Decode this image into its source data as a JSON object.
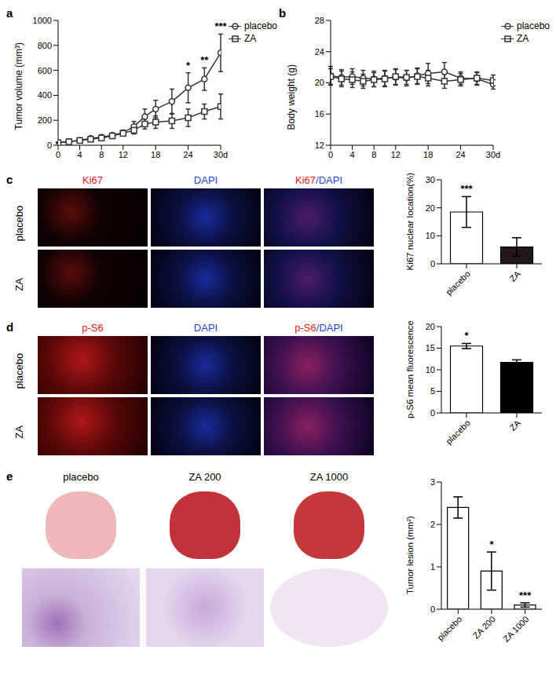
{
  "chart_data": [
    {
      "type": "line",
      "title": "a",
      "x": [
        0,
        2,
        4,
        6,
        8,
        10,
        12,
        14,
        16,
        18,
        21,
        24,
        27,
        30
      ],
      "xlim": [
        0,
        30
      ],
      "xticks": [
        0,
        4,
        8,
        12,
        18,
        24,
        {
          "value": 30,
          "label": "30d"
        }
      ],
      "ylim": [
        0,
        1000
      ],
      "yticks": [
        0,
        200,
        400,
        600,
        800,
        1000
      ],
      "y_label": "Tumor volume (mm³)",
      "legend": "right",
      "series": [
        {
          "name": "placebo",
          "color": "#333333",
          "marker": "circle",
          "values": [
            20,
            30,
            40,
            55,
            65,
            80,
            100,
            150,
            230,
            290,
            350,
            460,
            530,
            740
          ],
          "errors": [
            5,
            5,
            8,
            10,
            10,
            12,
            20,
            40,
            60,
            70,
            100,
            120,
            90,
            150
          ]
        },
        {
          "name": "ZA",
          "color": "#333333",
          "marker": "square",
          "values": [
            20,
            28,
            38,
            48,
            58,
            75,
            95,
            120,
            170,
            185,
            195,
            220,
            270,
            310
          ],
          "errors": [
            5,
            5,
            6,
            8,
            10,
            12,
            15,
            30,
            40,
            50,
            60,
            70,
            60,
            100
          ]
        }
      ],
      "annotations": [
        {
          "x": 24,
          "series": "placebo",
          "text": "*"
        },
        {
          "x": 27,
          "series": "placebo",
          "text": "**"
        },
        {
          "x": 30,
          "series": "placebo",
          "text": "***"
        }
      ]
    },
    {
      "type": "line",
      "title": "b",
      "x": [
        0,
        2,
        4,
        6,
        8,
        10,
        12,
        14,
        16,
        18,
        21,
        24,
        27,
        30
      ],
      "xlim": [
        0,
        30
      ],
      "xticks": [
        0,
        4,
        8,
        12,
        18,
        24,
        {
          "value": 30,
          "label": "30d"
        }
      ],
      "ylim": [
        12,
        28
      ],
      "yticks": [
        12,
        16,
        20,
        24,
        28
      ],
      "y_label": "Body weight (g)",
      "legend": "right",
      "series": [
        {
          "name": "placebo",
          "color": "#333333",
          "marker": "circle",
          "values": [
            20.9,
            20.7,
            20.8,
            20.6,
            20.5,
            20.6,
            20.7,
            20.6,
            20.9,
            21.2,
            21.4,
            20.6,
            20.5,
            19.8
          ],
          "errors": [
            1.2,
            1,
            1,
            1,
            1,
            1,
            1,
            1,
            1,
            1.3,
            1.2,
            0.8,
            0.8,
            0.6
          ]
        },
        {
          "name": "ZA",
          "color": "#333333",
          "marker": "square",
          "values": [
            20.8,
            20.5,
            20.4,
            20.2,
            20.4,
            20.5,
            20.8,
            20.7,
            20.8,
            20.6,
            20.2,
            20.4,
            20.6,
            20.3
          ],
          "errors": [
            1,
            1,
            1,
            0.9,
            0.9,
            1,
            1,
            0.9,
            1,
            1,
            0.9,
            0.8,
            0.8,
            0.7
          ]
        }
      ]
    },
    {
      "type": "bar",
      "categories": [
        "placebo",
        "ZA"
      ],
      "values": [
        18.5,
        6
      ],
      "errors": [
        5.5,
        3.3
      ],
      "colors": [
        "#ffffff",
        "#231816"
      ],
      "ylim": [
        0,
        30
      ],
      "yticks": [
        0,
        10,
        20,
        30
      ],
      "y_label": "Ki67 nuclear location(%)",
      "annotations": [
        {
          "category": "placebo",
          "text": "***"
        }
      ]
    },
    {
      "type": "bar",
      "categories": [
        "placebo",
        "ZA"
      ],
      "values": [
        15.5,
        11.7
      ],
      "errors": [
        0.6,
        0.6
      ],
      "colors": [
        "#ffffff",
        "#000000"
      ],
      "ylim": [
        0,
        20
      ],
      "yticks": [
        0,
        5,
        10,
        15,
        20
      ],
      "y_label": "p-S6 mean fluorescence",
      "annotations": [
        {
          "category": "placebo",
          "text": "*"
        }
      ]
    },
    {
      "type": "bar",
      "categories": [
        "placebo",
        "ZA 200",
        "ZA 1000"
      ],
      "values": [
        2.4,
        0.9,
        0.1
      ],
      "errors": [
        0.25,
        0.45,
        0.05
      ],
      "colors": [
        "#ffffff",
        "#ffffff",
        "#ffffff"
      ],
      "ylim": [
        0,
        3
      ],
      "yticks": [
        0,
        1,
        2,
        3
      ],
      "y_label": "Tumor lesion (mm²)",
      "annotations": [
        {
          "category": "ZA 200",
          "text": "*"
        },
        {
          "category": "ZA 1000",
          "text": "***"
        }
      ]
    }
  ],
  "image_panels": [
    {
      "panel": "c",
      "columns": [
        "Ki67",
        "DAPI",
        "Ki67/DAPI"
      ],
      "rows": [
        "placebo",
        "ZA"
      ]
    },
    {
      "panel": "d",
      "columns": [
        "p-S6",
        "DAPI",
        "p-S6/DAPI"
      ],
      "rows": [
        "placebo",
        "ZA"
      ]
    },
    {
      "panel": "e",
      "columns": [
        "placebo",
        "ZA 200",
        "ZA 1000"
      ]
    }
  ]
}
